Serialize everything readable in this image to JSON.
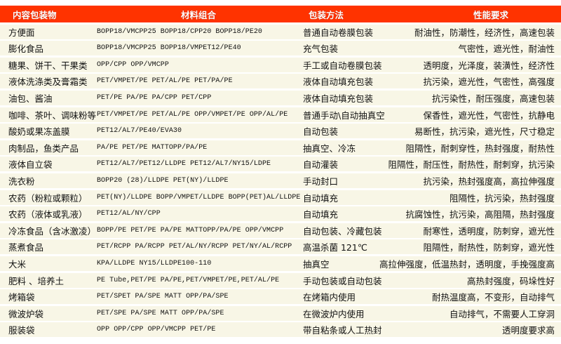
{
  "header": {
    "col_content": "内容包装物",
    "col_material": "材料组合",
    "col_method": "包装方法",
    "col_performance": "性能要求"
  },
  "header_color": "#ff3300",
  "row_color": "#f8f6e6",
  "rows": [
    {
      "content": "方便面",
      "material": "BOPP18/VMCPP25  BOPP18/CPP20  BOPP18/PE20",
      "method": "普通自动卷膜包装",
      "performance": "耐油性，防潮性，经济性，高速包装"
    },
    {
      "content": "膨化食品",
      "material": "BOPP18/VMCPP25  BOPP18/VMPET12/PE40",
      "method": "充气包装",
      "performance": "气密性，遮光性，耐油性"
    },
    {
      "content": "糖果、饼干、干果类",
      "material": "OPP/CPP OPP/VMCPP",
      "method": "手工或自动卷膜包装",
      "performance": "透明度，光泽度，装潢性，经济性"
    },
    {
      "content": "液体洗涤类及膏霜类",
      "material": "PET/VMPET/PE PET/AL/PE  PET/PA/PE",
      "method": "液体自动填充包装",
      "performance": "抗污染，遮光性，气密性，高强度"
    },
    {
      "content": "油包、酱油",
      "material": "PET/PE  PA/PE PA/CPP PET/CPP",
      "method": "液体自动填充包装",
      "performance": "抗污染性，耐压强度，高速包装"
    },
    {
      "content": "咖啡、茶叶、调味粉等",
      "material": "PET/VMPET/PE PET/AL/PE OPP/VMPET/PE OPP/AL/PE",
      "method": "普通手动\\自动抽真空",
      "performance": "保香性，遮光性，气密性，抗静电"
    },
    {
      "content": "酸奶或果冻盖膜",
      "material": "PET12/AL7/PE40/EVA30",
      "method": "自动包装",
      "performance": "易断性，抗污染，遮光性，尺寸稳定"
    },
    {
      "content": "肉制品，鱼类产品",
      "material": "PA/PE PET/PE MATTOPP/PA/PE",
      "method": "抽真空、冷冻",
      "performance": "阻隔性，耐刺穿性，热封强度，耐热性"
    },
    {
      "content": "液体自立袋",
      "material": "PET12/AL7/PET12/LLDPE PET12/AL7/NY15/LDPE",
      "method": "自动灌装",
      "performance": "阻隔性，耐压性，耐热性，耐刺穿，抗污染"
    },
    {
      "content": "洗衣粉",
      "material": "BOPP20 (28)/LLDPE PET(NY)/LLDPE",
      "method": "手动封口",
      "performance": "抗污染，热封强度高，高拉伸强度"
    },
    {
      "content": "农药（粉粒或颗粒）",
      "material": "PET(NY)/LLDPE BOPP/VMPET/LLDPE BOPP(PET)AL/LLDPE",
      "method": "自动填充",
      "performance": "阻隔性，抗污染，热封强度"
    },
    {
      "content": "农药（液体或乳液）",
      "material": "PET12/AL/NY/CPP",
      "method": "自动填充",
      "performance": "抗腐蚀性，抗污染，高阻隔，热封强度"
    },
    {
      "content": "冷冻食品（含冰激凌）",
      "material": "BOPP/PE PET/PE PA/PE MATTOPP/PA/PE OPP/VMCPP",
      "method": "自动包装、冷藏包装",
      "performance": "耐寒性，透明度，防刺穿，遮光性"
    },
    {
      "content": "蒸煮食品",
      "material": "PET/RCPP PA/RCPP PET/AL/NY/RCPP PET/NY/AL/RCPP",
      "method": "高温杀菌 121℃",
      "performance": "阻隔性，耐热性，防刺穿，遮光性"
    },
    {
      "content": "大米",
      "material": "KPA/LLDPE NY15/LLDPE100-110",
      "method": "抽真空",
      "performance": "高拉伸强度，低温热封，透明度，手挽强度高"
    },
    {
      "content": "肥料 、培养土",
      "material": "PE Tube,PET/PE  PA/PE,PET/VMPET/PE,PET/AL/PE",
      "method": "手动包装或自动包装",
      "performance": "高热封强度，码垛性好"
    },
    {
      "content": "烤箱袋",
      "material": "PET/SPET PA/SPE MATT OPP/PA/SPE",
      "method": "在烤箱内使用",
      "performance": "耐热温度高，不变形，自动排气"
    },
    {
      "content": "微波炉袋",
      "material": "PET/SPE PA/SPE MATT OPP/PA/SPE",
      "method": "在微波炉内使用",
      "performance": "自动排气，不需要人工穿洞"
    },
    {
      "content": "服装袋",
      "material": "OPP  OPP/CPP OPP/VMCPP PET/PE",
      "method": "带自粘条或人工热封",
      "performance": "透明度要求高"
    }
  ]
}
